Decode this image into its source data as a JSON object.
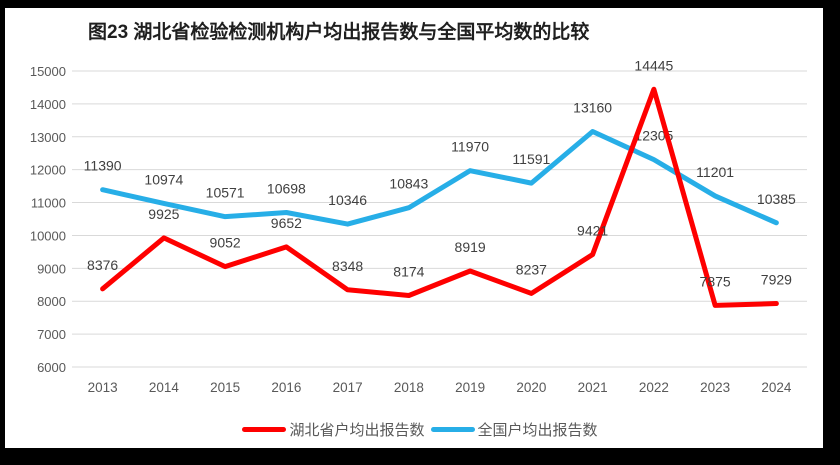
{
  "title": "图23 湖北省检验检测机构户均出报告数与全国平均数的比较",
  "chart_data": {
    "type": "line",
    "categories": [
      "2013",
      "2014",
      "2015",
      "2016",
      "2017",
      "2018",
      "2019",
      "2020",
      "2021",
      "2022",
      "2023",
      "2024"
    ],
    "series": [
      {
        "name": "湖北省户均出报告数",
        "color": "#FE0000",
        "values": [
          8376,
          9925,
          9052,
          9652,
          8348,
          8174,
          8919,
          8237,
          9421,
          14445,
          7875,
          7929
        ]
      },
      {
        "name": "全国户均出报告数",
        "color": "#27AEE7",
        "values": [
          11390,
          10974,
          10571,
          10698,
          10346,
          10843,
          11970,
          11591,
          13160,
          12305,
          11201,
          10385
        ]
      }
    ],
    "title": "图23 湖北省检验检测机构户均出报告数与全国平均数的比较",
    "xlabel": "",
    "ylabel": "",
    "ylim": [
      6000,
      15000
    ],
    "ytick_step": 1000,
    "ytick_labels": [
      "6000",
      "7000",
      "8000",
      "9000",
      "10000",
      "11000",
      "12000",
      "13000",
      "14000",
      "15000"
    ],
    "grid": "horizontal",
    "legend_position": "bottom",
    "data_labels": "above-points",
    "colors": {
      "gridline": "#D9D9D9",
      "tick_label": "#595959",
      "data_label": "#404040",
      "frame_border": "#000000"
    }
  }
}
